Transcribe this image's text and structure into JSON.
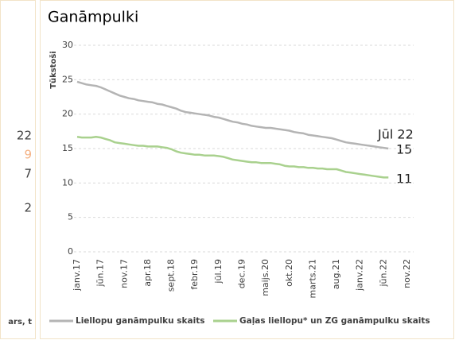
{
  "side_panel": {
    "labels": [
      "22",
      "9",
      "7",
      "2",
      "ars, t"
    ]
  },
  "chart_data": {
    "type": "line",
    "title": "Ganāmpulki",
    "y_label": "Tūkstoši",
    "categories": [
      "janv.17",
      null,
      null,
      null,
      null,
      "jūn.17",
      null,
      null,
      null,
      null,
      "nov.17",
      null,
      null,
      null,
      null,
      "apr.18",
      null,
      null,
      null,
      null,
      "sept.18",
      null,
      null,
      null,
      null,
      "febr.19",
      null,
      null,
      null,
      null,
      "jūl.19",
      null,
      null,
      null,
      null,
      "dec.19",
      null,
      null,
      null,
      null,
      "maijs.20",
      null,
      null,
      null,
      null,
      "okt.20",
      null,
      null,
      null,
      null,
      "marts.21",
      null,
      null,
      null,
      null,
      "aug.21",
      null,
      null,
      null,
      null,
      "janv.22",
      null,
      null,
      null,
      null,
      "jūn.22",
      null,
      null,
      null,
      null,
      "nov.22"
    ],
    "series": [
      {
        "name": "Liellopu ganāmpulku skaits",
        "color": "#b4b4b4",
        "values": [
          24.7,
          24.5,
          24.3,
          24.2,
          24.1,
          23.9,
          23.6,
          23.3,
          23.0,
          22.7,
          22.5,
          22.3,
          22.2,
          22.0,
          21.9,
          21.8,
          21.7,
          21.5,
          21.4,
          21.2,
          21.0,
          20.8,
          20.5,
          20.3,
          20.2,
          20.1,
          20.0,
          19.9,
          19.8,
          19.6,
          19.5,
          19.3,
          19.1,
          18.9,
          18.8,
          18.6,
          18.5,
          18.3,
          18.2,
          18.1,
          18.0,
          18.0,
          17.9,
          17.8,
          17.7,
          17.6,
          17.4,
          17.3,
          17.2,
          17.0,
          16.9,
          16.8,
          16.7,
          16.6,
          16.5,
          16.3,
          16.1,
          15.9,
          15.8,
          15.7,
          15.6,
          15.5,
          15.4,
          15.3,
          15.2,
          15.1,
          15.0,
          null,
          null,
          null,
          null
        ]
      },
      {
        "name": "Gaļas liellopu* un ZG ganāmpulku skaits",
        "color": "#a9d18e",
        "values": [
          16.7,
          16.6,
          16.6,
          16.6,
          16.7,
          16.6,
          16.4,
          16.2,
          15.9,
          15.8,
          15.7,
          15.6,
          15.5,
          15.4,
          15.4,
          15.3,
          15.3,
          15.3,
          15.2,
          15.1,
          14.9,
          14.6,
          14.4,
          14.3,
          14.2,
          14.1,
          14.1,
          14.0,
          14.0,
          14.0,
          13.9,
          13.8,
          13.6,
          13.4,
          13.3,
          13.2,
          13.1,
          13.0,
          13.0,
          12.9,
          12.9,
          12.9,
          12.8,
          12.7,
          12.5,
          12.4,
          12.4,
          12.3,
          12.3,
          12.2,
          12.2,
          12.1,
          12.1,
          12.0,
          12.0,
          12.0,
          11.8,
          11.6,
          11.5,
          11.4,
          11.3,
          11.2,
          11.1,
          11.0,
          10.9,
          10.8,
          10.8,
          null,
          null,
          null,
          null
        ]
      }
    ],
    "annotations": [
      "Jūl 22",
      "15",
      "11"
    ],
    "ylim": [
      0,
      30
    ],
    "yticks": [
      0,
      5,
      10,
      15,
      20,
      25,
      30
    ],
    "grid": true,
    "legend": "bottom"
  }
}
